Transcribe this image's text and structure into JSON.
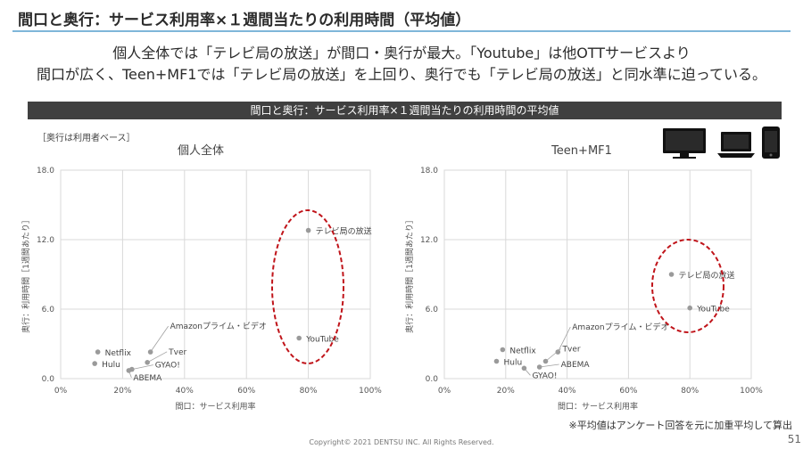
{
  "title": "間口と奥行：サービス利用率×１週間当たりの利用時間（平均値）",
  "lead": [
    "個人全体では「テレビ局の放送」が間口・奥行が最大。「Youtube」は他OTTサービスより",
    "間口が広く、Teen+MF1では「テレビ局の放送」を上回り、奥行でも「テレビ局の放送」と同水準に迫っている。"
  ],
  "section_bar": "間口と奥行：サービス利用率×１週間当たりの利用時間の平均値",
  "base_note": "［奥行は利用者ベース］",
  "foot_note": "※平均値はアンケート回答を元に加重平均して算出",
  "copyright": "Copyright© 2021 DENTSU INC. All Rights Reserved.",
  "page_number": "51",
  "icons": [
    "tv-icon",
    "laptop-icon",
    "smartphone-icon"
  ],
  "colors": {
    "point": "#9a9a9a",
    "highlight": "#c0141a",
    "grid": "#d9d9d9",
    "title_rule": "#7fb6d9",
    "bar": "#404040"
  },
  "chart_data": [
    {
      "type": "scatter",
      "title": "個人全体",
      "xlabel": "間口：サービス利用率",
      "ylabel": "奥行：利用時間［1週間あたり］",
      "xlim": [
        0,
        100
      ],
      "ylim": [
        0,
        18
      ],
      "x_ticks": [
        "0%",
        "20%",
        "40%",
        "60%",
        "80%",
        "100%"
      ],
      "y_ticks": [
        "0.0",
        "6.0",
        "12.0",
        "18.0"
      ],
      "grid": true,
      "points": [
        {
          "label": "テレビ局の放送",
          "x": 80,
          "y": 12.8
        },
        {
          "label": "YouTube",
          "x": 77,
          "y": 3.5
        },
        {
          "label": "Amazonプライム・ビデオ",
          "x": 29,
          "y": 2.3
        },
        {
          "label": "Tver",
          "x": 28,
          "y": 1.4
        },
        {
          "label": "GYAO!",
          "x": 23,
          "y": 0.8
        },
        {
          "label": "ABEMA",
          "x": 22,
          "y": 0.7
        },
        {
          "label": "Netflix",
          "x": 12,
          "y": 2.3
        },
        {
          "label": "Hulu",
          "x": 11,
          "y": 1.3
        }
      ],
      "highlight": "テレビ局の放送, YouTube"
    },
    {
      "type": "scatter",
      "title": "Teen+MF1",
      "xlabel": "間口：サービス利用率",
      "ylabel": "奥行：利用時間［1週間あたり］",
      "xlim": [
        0,
        100
      ],
      "ylim": [
        0,
        18
      ],
      "x_ticks": [
        "0%",
        "20%",
        "40%",
        "60%",
        "80%",
        "100%"
      ],
      "y_ticks": [
        "0.0",
        "6.0",
        "12.0",
        "18.0"
      ],
      "grid": true,
      "points": [
        {
          "label": "テレビ局の放送",
          "x": 74,
          "y": 9.0
        },
        {
          "label": "YouTube",
          "x": 80,
          "y": 6.1
        },
        {
          "label": "Amazonプライム・ビデオ",
          "x": 37,
          "y": 2.3
        },
        {
          "label": "Tver",
          "x": 33,
          "y": 1.5
        },
        {
          "label": "ABEMA",
          "x": 31,
          "y": 1.0
        },
        {
          "label": "GYAO!",
          "x": 26,
          "y": 0.9
        },
        {
          "label": "Netflix",
          "x": 19,
          "y": 2.5
        },
        {
          "label": "Hulu",
          "x": 17,
          "y": 1.5
        }
      ],
      "highlight": "テレビ局の放送, YouTube"
    }
  ]
}
